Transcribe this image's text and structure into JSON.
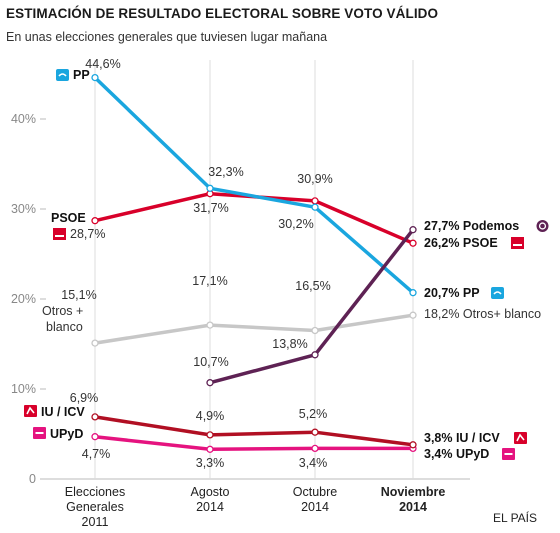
{
  "chart_data": {
    "type": "line",
    "title": "ESTIMACIÓN DE RESULTADO ELECTORAL SOBRE VOTO VÁLIDO",
    "subtitle": "En unas elecciones generales que tuviesen lugar mañana",
    "source": "EL PAÍS",
    "categories": [
      {
        "lines": [
          "Elecciones",
          "Generales",
          "2011"
        ],
        "bold": false
      },
      {
        "lines": [
          "Agosto",
          "2014"
        ],
        "bold": false
      },
      {
        "lines": [
          "Octubre",
          "2014"
        ],
        "bold": false
      },
      {
        "lines": [
          "Noviembre",
          "2014"
        ],
        "bold": true
      }
    ],
    "y_ticks": [
      {
        "value": 0,
        "label": "0"
      },
      {
        "value": 10,
        "label": "10%"
      },
      {
        "value": 20,
        "label": "20%"
      },
      {
        "value": 30,
        "label": "30%"
      },
      {
        "value": 40,
        "label": "40%"
      }
    ],
    "ylim": [
      0,
      45
    ],
    "grid": "vertical",
    "series": [
      {
        "name": "PP",
        "color": "#1aa6df",
        "icon": "pp-logo-icon",
        "values": [
          44.6,
          32.3,
          30.2,
          20.7
        ],
        "labels": [
          "44,6%",
          "32,3%",
          "30,2%",
          "20,7%"
        ]
      },
      {
        "name": "PSOE",
        "color": "#d8002a",
        "icon": "psoe-logo-icon",
        "values": [
          28.7,
          31.7,
          30.9,
          26.2
        ],
        "labels": [
          "28,7%",
          "31,7%",
          "30,9%",
          "26,2%"
        ]
      },
      {
        "name": "Podemos",
        "color": "#5e2254",
        "icon": "podemos-logo-icon",
        "values": [
          null,
          10.7,
          13.8,
          27.7
        ],
        "labels": [
          null,
          "10,7%",
          "13,8%",
          "27,7%"
        ]
      },
      {
        "name": "Otros + blanco",
        "start_label": "Otros +\nblanco",
        "end_label": "Otros+ blanco",
        "color": "#c7c7c7",
        "icon": null,
        "values": [
          15.1,
          17.1,
          16.5,
          18.2
        ],
        "labels": [
          "15,1%",
          "17,1%",
          "16,5%",
          "18,2%"
        ]
      },
      {
        "name": "IU / ICV",
        "color": "#b10f23",
        "icon": "iu-logo-icon",
        "values": [
          6.9,
          4.9,
          5.2,
          3.8
        ],
        "labels": [
          "6,9%",
          "4,9%",
          "5,2%",
          "3,8%"
        ]
      },
      {
        "name": "UPyD",
        "color": "#e5137f",
        "icon": "upyd-logo-icon",
        "values": [
          4.7,
          3.3,
          3.4,
          3.4
        ],
        "labels": [
          "4,7%",
          "3,3%",
          "3,4%",
          "3,4%"
        ]
      }
    ]
  }
}
